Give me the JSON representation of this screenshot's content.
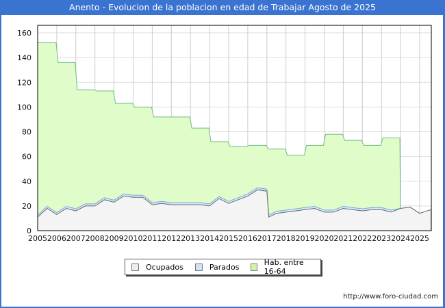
{
  "header": {
    "title": "Anento - Evolucion de la poblacion en edad de Trabajar Agosto de 2025"
  },
  "footer": {
    "url": "http://www.foro-ciudad.com"
  },
  "colors": {
    "header_bg": "#3a74d0",
    "hab_fill": "#e0fcc8",
    "hab_line": "#6fb98a",
    "parados_fill": "#d6e8fb",
    "parados_line": "#7aa6e0",
    "ocupados_fill": "#f4f4f4",
    "ocupados_line": "#666666"
  },
  "legend": [
    {
      "label": "Ocupados",
      "color": "#eeeeee"
    },
    {
      "label": "Parados",
      "color": "#cce4fb"
    },
    {
      "label": "Hab. entre 16-64",
      "color": "#ccf7a8"
    }
  ],
  "chart_data": {
    "type": "area",
    "title": "Anento - Evolucion de la poblacion en edad de Trabajar Agosto de 2025",
    "xlabel": "",
    "ylabel": "",
    "ylim": [
      0,
      165
    ],
    "yticks": [
      0,
      20,
      40,
      60,
      80,
      100,
      120,
      140,
      160
    ],
    "xticks": [
      "2005",
      "2006",
      "2007",
      "2008",
      "2009",
      "2010",
      "2011",
      "2012",
      "2013",
      "2014",
      "2015",
      "2016",
      "2017",
      "2018",
      "2019",
      "2020",
      "2021",
      "2022",
      "2023",
      "2024",
      "2025"
    ],
    "grid": true,
    "legend_position": "bottom",
    "series": [
      {
        "name": "Hab. entre 16-64",
        "x": [
          2005,
          2006,
          2007,
          2008,
          2009,
          2010,
          2011,
          2012,
          2013,
          2014,
          2015,
          2016,
          2017,
          2018,
          2019,
          2020,
          2021,
          2022,
          2023
        ],
        "values": [
          152,
          136,
          114,
          113,
          103,
          100,
          92,
          92,
          83,
          72,
          68,
          69,
          66,
          61,
          69,
          78,
          73,
          69,
          75
        ]
      },
      {
        "name": "Parados",
        "x": [
          2005,
          2006,
          2007,
          2008,
          2009,
          2010,
          2011,
          2012,
          2013,
          2014,
          2015,
          2016,
          2017,
          2018,
          2019,
          2020,
          2021,
          2022,
          2023,
          2024,
          2025
        ],
        "values": [
          1,
          1,
          2,
          1,
          1,
          1,
          2,
          3,
          2,
          1,
          1,
          2,
          2,
          1,
          2,
          1,
          2,
          1,
          1,
          0,
          0
        ]
      },
      {
        "name": "Ocupados",
        "x": [
          2005,
          2005.5,
          2006,
          2006.5,
          2007,
          2007.5,
          2008,
          2008.5,
          2009,
          2009.5,
          2010,
          2010.5,
          2011,
          2011.5,
          2012,
          2012.5,
          2013,
          2013.5,
          2014,
          2014.5,
          2015,
          2015.5,
          2016,
          2016.5,
          2017,
          2017.1,
          2017.5,
          2018,
          2018.5,
          2019,
          2019.5,
          2020,
          2020.5,
          2021,
          2021.5,
          2022,
          2022.5,
          2023,
          2023.5,
          2024,
          2024.5,
          2025,
          2025.6
        ],
        "values": [
          11,
          18,
          13,
          18,
          16,
          20,
          20,
          25,
          23,
          28,
          27,
          27,
          21,
          22,
          21,
          21,
          21,
          21,
          20,
          26,
          22,
          25,
          28,
          33,
          32,
          11,
          14,
          15,
          16,
          17,
          18,
          15,
          15,
          18,
          17,
          16,
          17,
          17,
          15,
          18,
          19,
          14,
          17
        ]
      }
    ]
  }
}
